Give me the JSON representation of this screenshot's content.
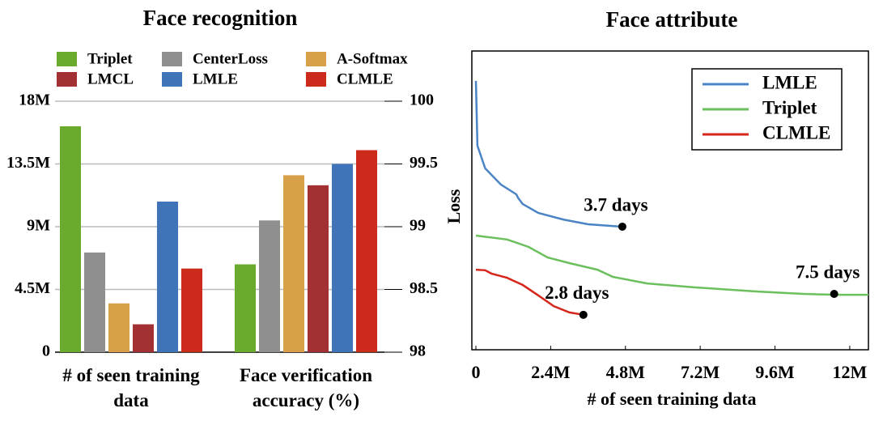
{
  "chart_data": [
    {
      "type": "bar",
      "title": "Face recognition",
      "categories": [
        "# of seen training data",
        "Face verification accuracy (%)"
      ],
      "category_axes": [
        "y",
        "y2"
      ],
      "series": [
        {
          "name": "Triplet",
          "color": "#6aaa2c",
          "values": [
            16200000,
            98.7
          ]
        },
        {
          "name": "CenterLoss",
          "color": "#8f8f8f",
          "values": [
            7150000,
            99.05
          ]
        },
        {
          "name": "A-Softmax",
          "color": "#d9a04a",
          "values": [
            3500000,
            99.41
          ]
        },
        {
          "name": "LMCL",
          "color": "#a33033",
          "values": [
            2000000,
            99.33
          ]
        },
        {
          "name": "LMLE",
          "color": "#3f74b8",
          "values": [
            10800000,
            99.5
          ]
        },
        {
          "name": "CLMLE",
          "color": "#cc2a1b",
          "values": [
            6000000,
            99.61
          ]
        }
      ],
      "ylim": [
        0,
        18000000
      ],
      "yticks": [
        0,
        {
          "value": 4500000,
          "label": "4.5M"
        },
        {
          "value": 9000000,
          "label": "9M"
        },
        {
          "value": 13500000,
          "label": "13.5M"
        },
        {
          "value": 18000000,
          "label": "18M"
        }
      ],
      "y2lim": [
        98,
        100
      ],
      "y2ticks": [
        98,
        98.5,
        99,
        99.5,
        100
      ],
      "grid": true,
      "legend": "top"
    },
    {
      "type": "line",
      "title": "Face attribute",
      "xlabel": "# of seen training data",
      "ylabel": "Loss",
      "xlim": [
        0,
        12600000
      ],
      "xticks": [
        0,
        {
          "value": 2400000,
          "label": "2.4M"
        },
        {
          "value": 4800000,
          "label": "4.8M"
        },
        {
          "value": 7200000,
          "label": "7.2M"
        },
        {
          "value": 9600000,
          "label": "9.6M"
        },
        {
          "value": 12000000,
          "label": "12M"
        }
      ],
      "ylim": [
        0,
        1
      ],
      "legend": "upper right",
      "series": [
        {
          "name": "LMLE",
          "color": "#4a84c4",
          "x": [
            0,
            50000,
            300000,
            800000,
            1300000,
            1350000,
            1500000,
            2000000,
            2800000,
            3600000,
            4700000
          ],
          "values": [
            0.9,
            0.683,
            0.607,
            0.553,
            0.52,
            0.509,
            0.488,
            0.458,
            0.436,
            0.42,
            0.412
          ]
        },
        {
          "name": "Triplet",
          "color": "#6bbf5c",
          "x": [
            0,
            1000000,
            1700000,
            2300000,
            3000000,
            3900000,
            4400000,
            5500000,
            7000000,
            9000000,
            10500000,
            11500000,
            12600000
          ],
          "values": [
            0.382,
            0.369,
            0.344,
            0.309,
            0.29,
            0.268,
            0.244,
            0.222,
            0.209,
            0.195,
            0.187,
            0.184,
            0.184
          ]
        },
        {
          "name": "CLMLE",
          "color": "#d6261c",
          "x": [
            0,
            300000,
            500000,
            1000000,
            1500000,
            2000000,
            2500000,
            3000000,
            3450000
          ],
          "values": [
            0.268,
            0.266,
            0.255,
            0.241,
            0.217,
            0.182,
            0.146,
            0.125,
            0.117
          ]
        }
      ],
      "annotations": [
        {
          "text": "3.7 days",
          "x": 4700000,
          "y": 0.412
        },
        {
          "text": "2.8 days",
          "x": 3450000,
          "y": 0.117
        },
        {
          "text": "7.5 days",
          "x": 11500000,
          "y": 0.187
        }
      ]
    }
  ]
}
